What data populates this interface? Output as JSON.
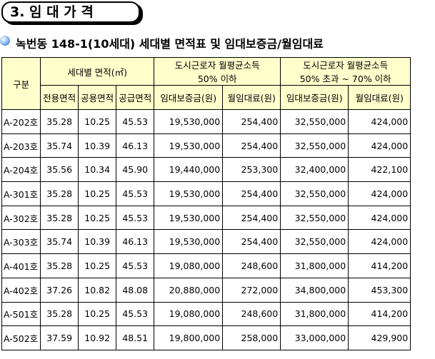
{
  "header": {
    "title": "3. 임 대 가 격"
  },
  "subtitle": "녹번동 148-1(10세대) 세대별 면적표 및 임대보증금/월임대료",
  "table": {
    "group_headers": [
      "구분",
      "세대별 면적(㎡)",
      [
        "도시근로자 월평균소득",
        "50% 이하"
      ],
      [
        "도시근로자 월평균소득",
        "50% 초과 ~ 70% 이하"
      ]
    ],
    "sub_headers": [
      "전용면적",
      "공용면적",
      "공급면적",
      "임대보증금(원)",
      "월임대료(원)",
      "임대보증금(원)",
      "월임대료(원)"
    ],
    "rows": [
      [
        "A-202호",
        "35.28",
        "10.25",
        "45.53",
        "19,530,000",
        "254,400",
        "32,550,000",
        "424,000"
      ],
      [
        "A-203호",
        "35.74",
        "10.39",
        "46.13",
        "19,530,000",
        "254,400",
        "32,550,000",
        "424,000"
      ],
      [
        "A-204호",
        "35.56",
        "10.34",
        "45.90",
        "19,440,000",
        "253,300",
        "32,400,000",
        "422,100"
      ],
      [
        "A-301호",
        "35.28",
        "10.25",
        "45.53",
        "19,530,000",
        "254,400",
        "32,550,000",
        "424,000"
      ],
      [
        "A-302호",
        "35.28",
        "10.25",
        "45.53",
        "19,530,000",
        "254,400",
        "32,550,000",
        "424,000"
      ],
      [
        "A-303호",
        "35.74",
        "10.39",
        "46.13",
        "19,530,000",
        "254,400",
        "32,550,000",
        "424,000"
      ],
      [
        "A-401호",
        "35.28",
        "10.25",
        "45.53",
        "19,080,000",
        "248,600",
        "31,800,000",
        "414,200"
      ],
      [
        "A-402호",
        "37.26",
        "10.82",
        "48.08",
        "20,880,000",
        "272,000",
        "34,800,000",
        "453,300"
      ],
      [
        "A-501호",
        "35.28",
        "10.25",
        "45.53",
        "19,080,000",
        "248,600",
        "31,800,000",
        "414,200"
      ],
      [
        "A-502호",
        "37.59",
        "10.92",
        "48.51",
        "19,800,000",
        "258,000",
        "33,000,000",
        "429,900"
      ]
    ]
  }
}
